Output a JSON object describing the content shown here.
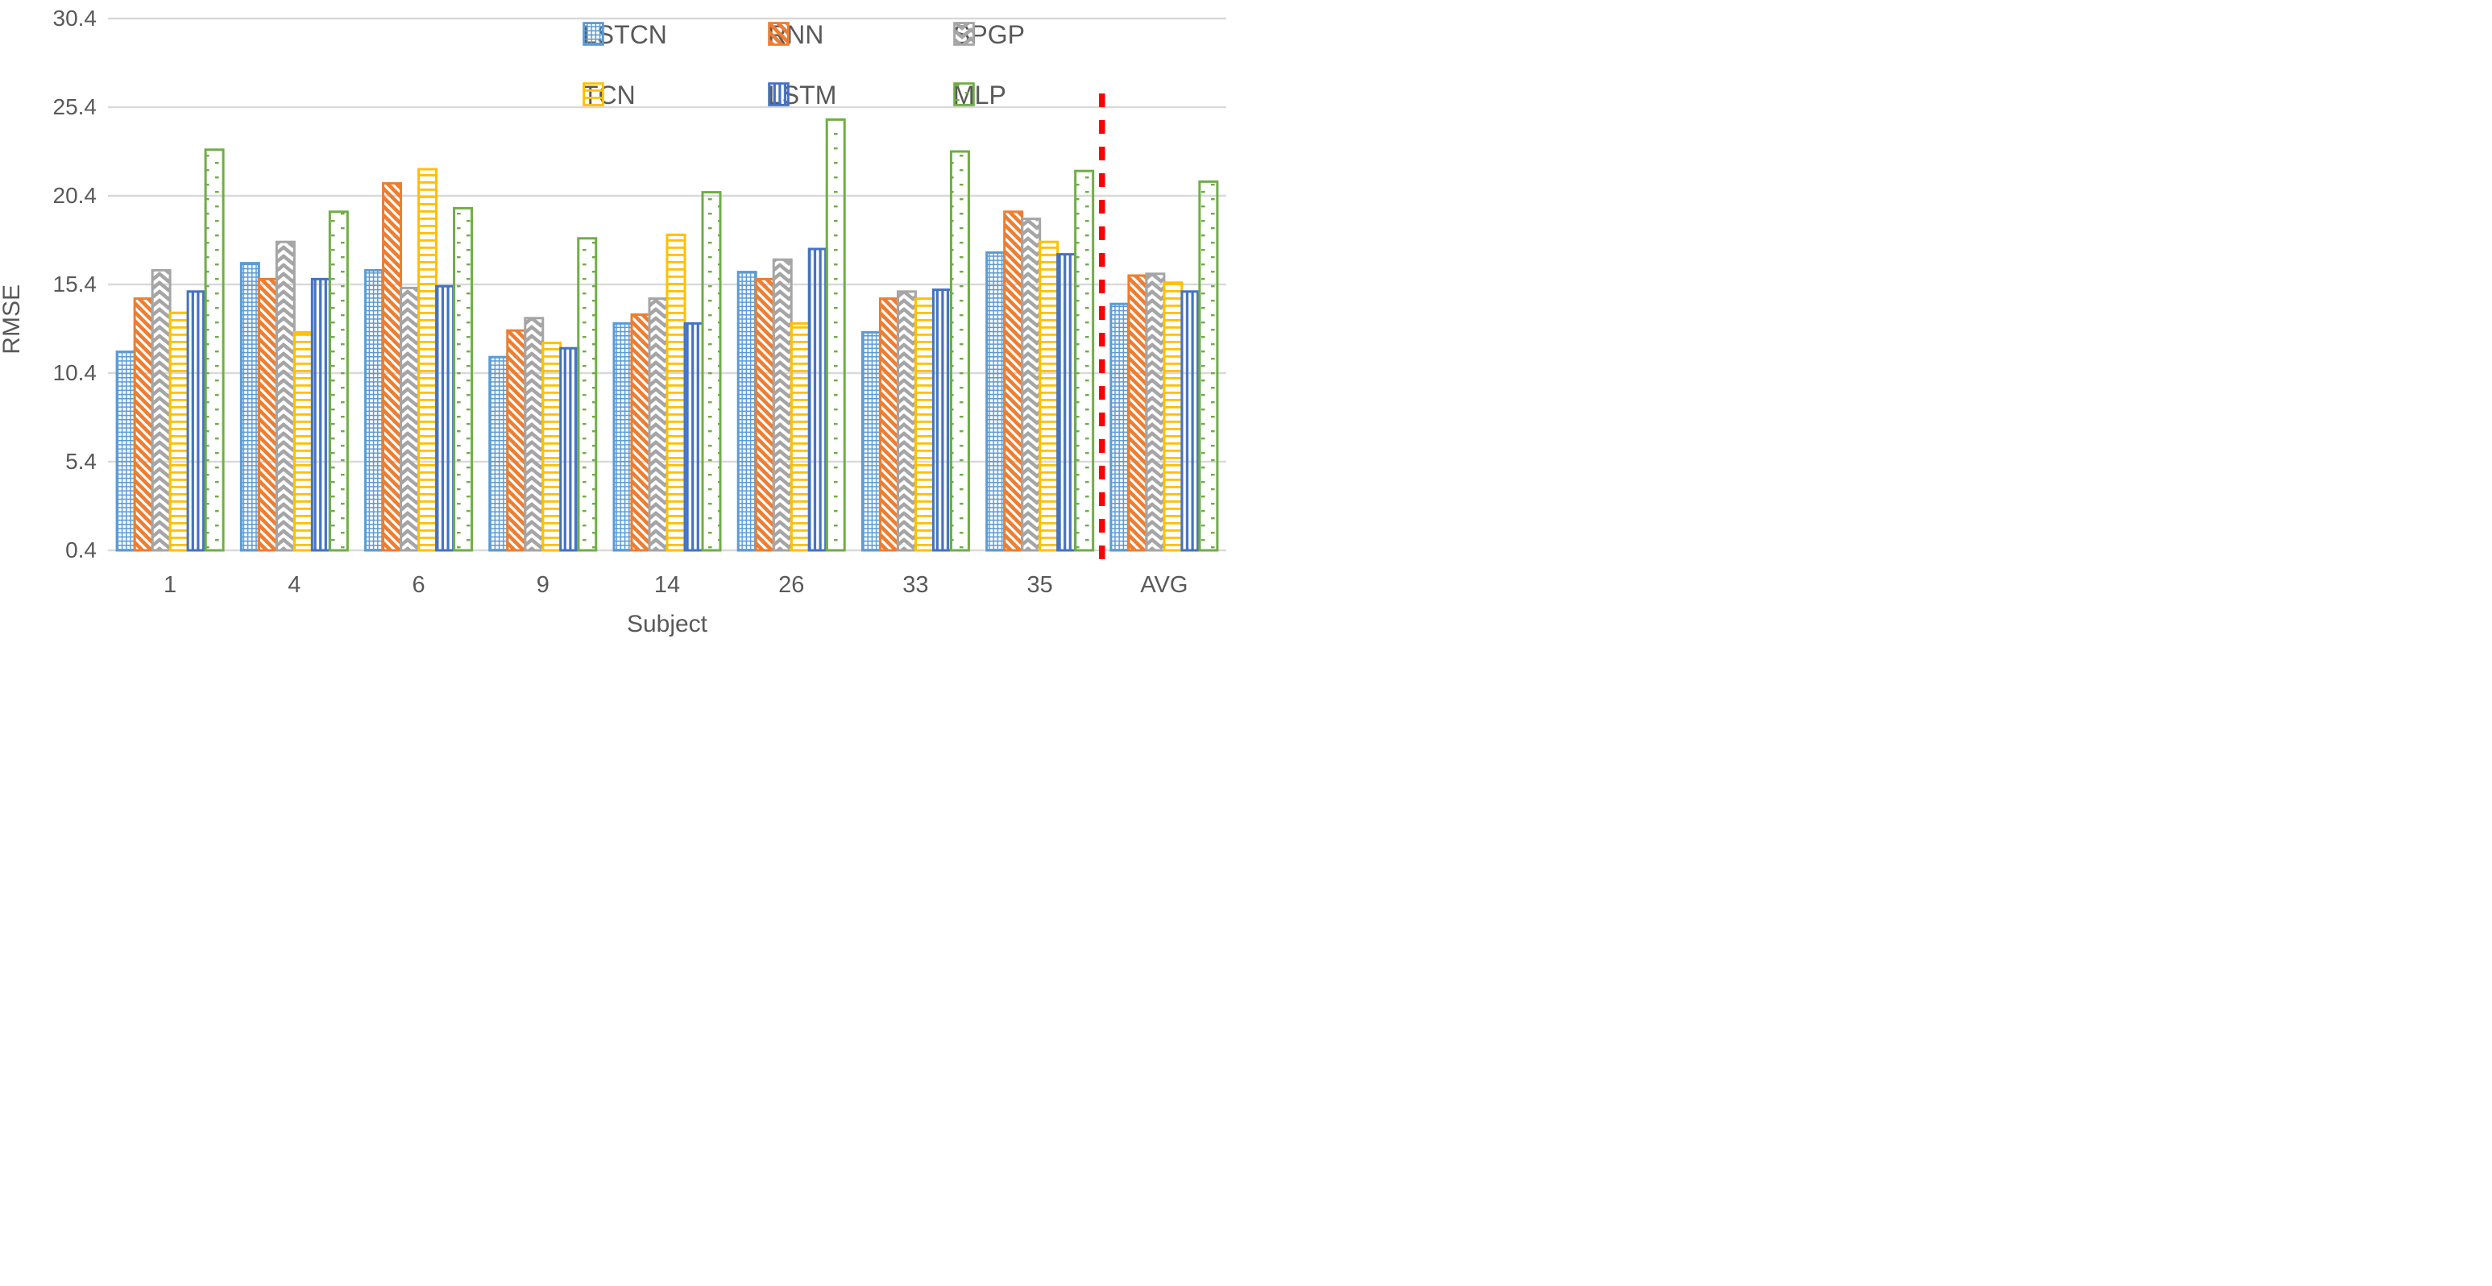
{
  "figure": {
    "y_axis_title": "RMSE",
    "x_axis_title": "Subject",
    "background": "#ffffff",
    "gridline_color": "#D9D9D9",
    "axis_text_color": "#595959",
    "divider_color": "#FF0000"
  },
  "legend": {
    "rows": [
      [
        "LSTCN",
        "RNN",
        "SPGP"
      ],
      [
        "TCN",
        "LSTM",
        "MLP"
      ]
    ]
  },
  "chart_data": {
    "type": "bar",
    "title": "",
    "xlabel": "Subject",
    "ylabel": "RMSE",
    "ylim": [
      0.4,
      30.4
    ],
    "yticks": [
      0.4,
      5.4,
      10.4,
      15.4,
      20.4,
      25.4,
      30.4
    ],
    "grid": true,
    "legend_position": "top",
    "categories": [
      "1",
      "4",
      "6",
      "9",
      "14",
      "26",
      "33",
      "35",
      "AVG"
    ],
    "series": [
      {
        "name": "LSTCN",
        "color": "#5B9BD5",
        "pattern": "grid",
        "values": [
          11.6,
          16.6,
          16.2,
          11.3,
          13.2,
          16.1,
          12.7,
          17.2,
          14.3
        ]
      },
      {
        "name": "RNN",
        "color": "#ED7D31",
        "pattern": "diagonal-down",
        "values": [
          14.6,
          15.7,
          21.1,
          12.8,
          13.7,
          15.7,
          14.6,
          19.5,
          15.9
        ]
      },
      {
        "name": "SPGP",
        "color": "#A5A5A5",
        "pattern": "herringbone",
        "values": [
          16.2,
          17.8,
          15.2,
          13.5,
          14.6,
          16.8,
          15.0,
          19.1,
          16.0
        ]
      },
      {
        "name": "TCN",
        "color": "#FFC000",
        "pattern": "horizontal-lines",
        "values": [
          13.8,
          12.7,
          21.9,
          12.1,
          18.2,
          13.2,
          14.6,
          17.8,
          15.5
        ]
      },
      {
        "name": "LSTM",
        "color": "#4472C4",
        "pattern": "vertical-lines",
        "values": [
          15.0,
          15.7,
          15.3,
          11.8,
          13.2,
          17.4,
          15.1,
          17.1,
          15.0
        ]
      },
      {
        "name": "MLP",
        "color": "#70AD47",
        "pattern": "dots",
        "values": [
          23.0,
          19.5,
          19.7,
          18.0,
          20.6,
          24.7,
          22.9,
          21.8,
          21.2
        ]
      }
    ],
    "annotations": {
      "divider_after_category": "35",
      "divider_style": "dashed",
      "divider_color": "#FF0000",
      "divider_note": "vertical red dashed line separating per-subject groups from AVG"
    }
  }
}
